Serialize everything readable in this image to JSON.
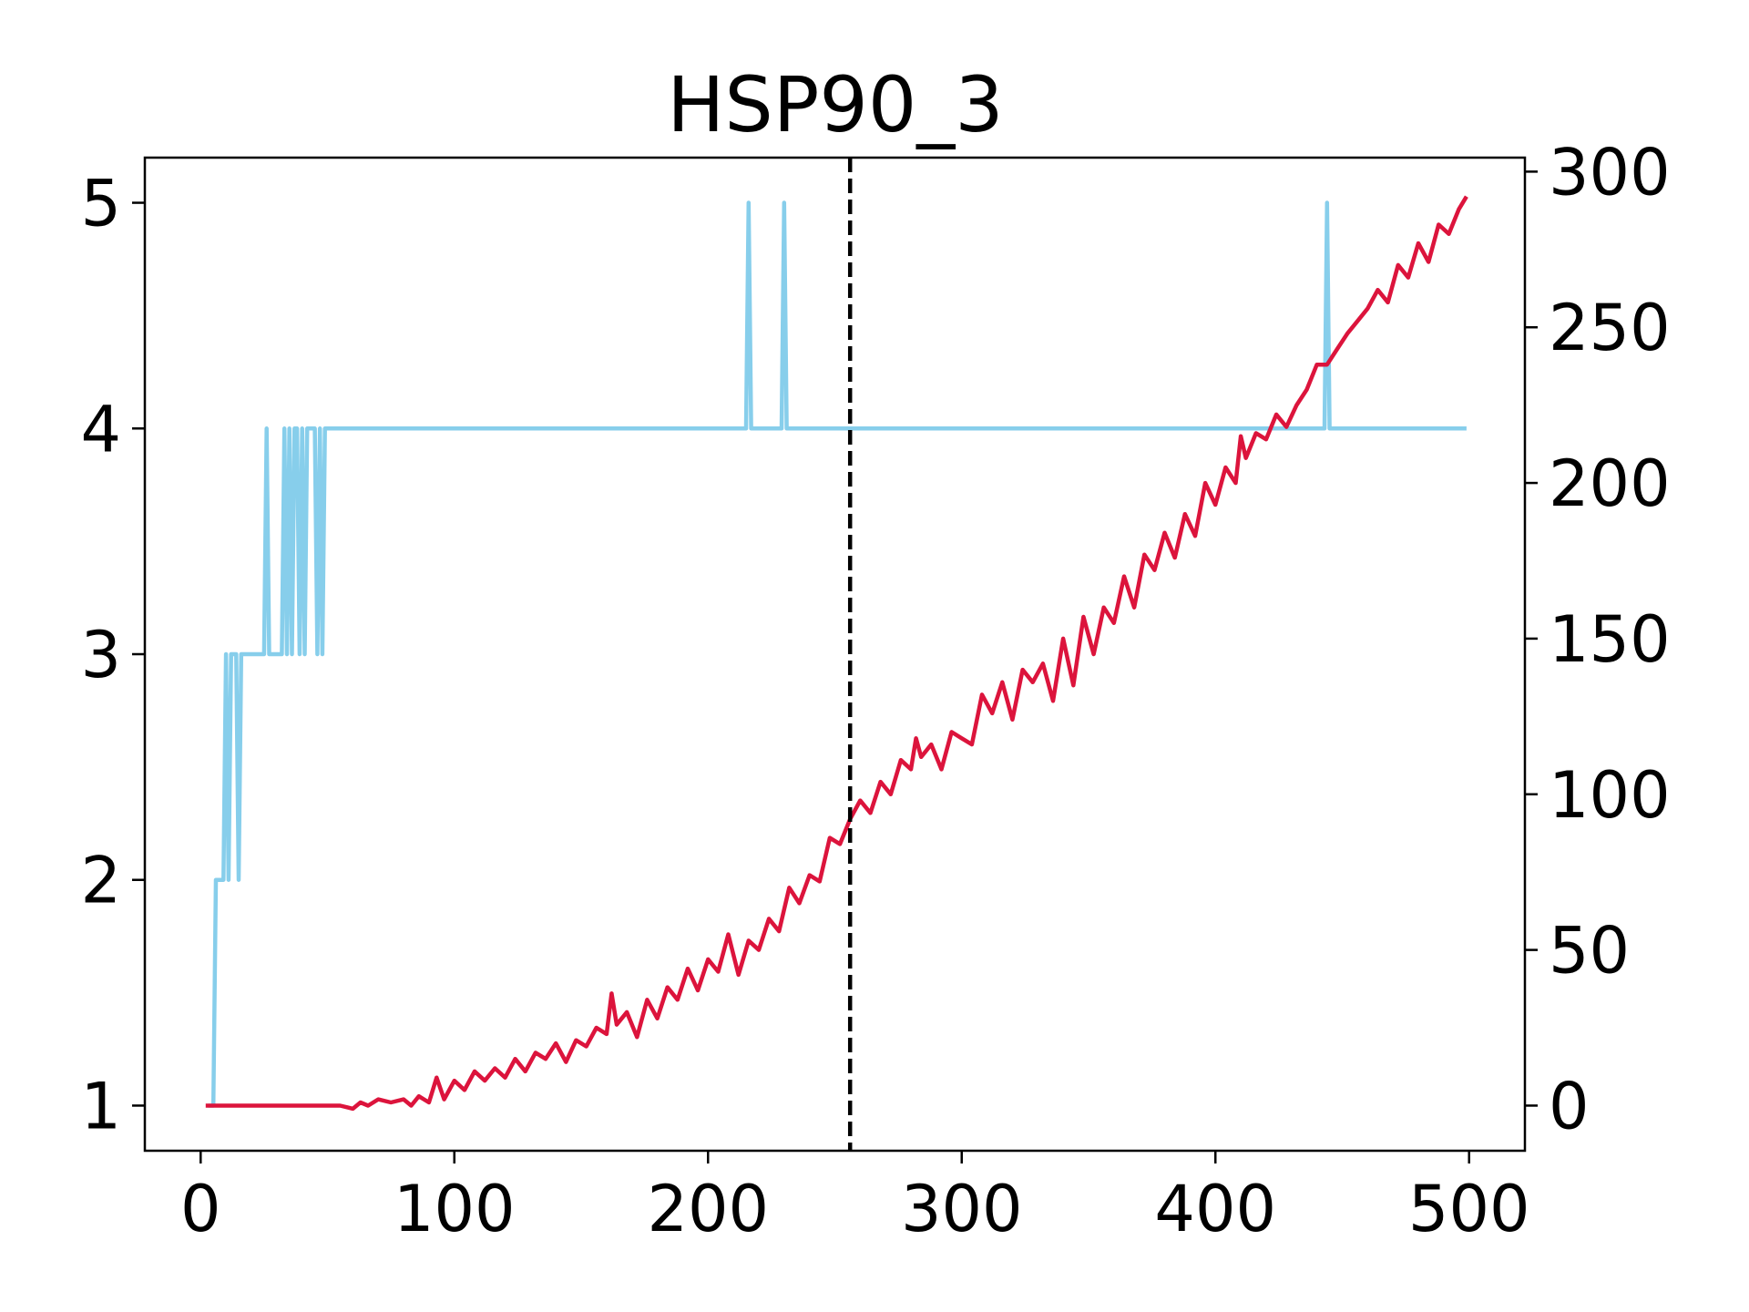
{
  "chart_data": {
    "type": "line",
    "title": "HSP90_3",
    "xlabel": "",
    "ylabel": "",
    "y2label": "",
    "xlim": [
      -22,
      522
    ],
    "ylim": [
      0.8,
      5.2
    ],
    "y2lim": [
      -14.5,
      304.5
    ],
    "xticks": [
      0,
      100,
      200,
      300,
      400,
      500
    ],
    "yticks": [
      1,
      2,
      3,
      4,
      5
    ],
    "y2ticks": [
      0,
      50,
      100,
      150,
      200,
      250,
      300
    ],
    "grid": false,
    "legend": "none",
    "vline": {
      "x": 256,
      "style": "dashed",
      "color": "#000000"
    },
    "series": [
      {
        "axis": "left",
        "color": "#87CEEB",
        "x": [
          3,
          5,
          6,
          9,
          10,
          11,
          12,
          13,
          14,
          15,
          16,
          17,
          18,
          25,
          26,
          27,
          32,
          33,
          34,
          35,
          36,
          37,
          38,
          39,
          40,
          41,
          42,
          43,
          44,
          45,
          46,
          47,
          48,
          49,
          50,
          100,
          200,
          215,
          216,
          217,
          229,
          230,
          231,
          300,
          400,
          443,
          444,
          445,
          499
        ],
        "y": [
          1,
          1,
          2,
          2,
          3,
          2,
          3,
          3,
          3,
          2,
          3,
          3,
          3,
          3,
          4,
          3,
          3,
          4,
          3,
          4,
          3,
          4,
          4,
          3,
          4,
          3,
          4,
          4,
          4,
          4,
          3,
          4,
          3,
          4,
          4,
          4,
          4,
          4,
          5,
          4,
          4,
          5,
          4,
          4,
          4,
          4,
          5,
          4,
          4
        ]
      },
      {
        "axis": "right",
        "color": "#DC143C",
        "x": [
          2,
          10,
          20,
          30,
          40,
          50,
          55,
          60,
          63,
          66,
          70,
          75,
          80,
          83,
          86,
          90,
          93,
          96,
          100,
          104,
          108,
          112,
          116,
          120,
          124,
          128,
          132,
          136,
          140,
          144,
          148,
          152,
          156,
          160,
          162,
          164,
          168,
          172,
          176,
          180,
          184,
          188,
          192,
          196,
          200,
          204,
          208,
          212,
          216,
          220,
          224,
          228,
          232,
          236,
          240,
          244,
          248,
          252,
          256,
          260,
          264,
          268,
          272,
          276,
          280,
          282,
          284,
          288,
          292,
          296,
          300,
          304,
          308,
          312,
          316,
          320,
          324,
          328,
          332,
          336,
          340,
          344,
          348,
          352,
          356,
          360,
          364,
          368,
          372,
          376,
          380,
          384,
          388,
          392,
          396,
          400,
          404,
          408,
          410,
          412,
          416,
          420,
          424,
          428,
          432,
          436,
          440,
          444,
          448,
          452,
          456,
          460,
          464,
          468,
          472,
          476,
          480,
          484,
          488,
          492,
          496,
          499
        ],
        "y": [
          0,
          0,
          0,
          0,
          0,
          0,
          0,
          -1,
          1,
          0,
          2,
          1,
          2,
          0,
          3,
          1,
          9,
          2,
          8,
          5,
          11,
          8,
          12,
          9,
          15,
          11,
          17,
          15,
          20,
          14,
          21,
          19,
          25,
          23,
          36,
          26,
          30,
          22,
          34,
          28,
          38,
          34,
          44,
          37,
          47,
          43,
          55,
          42,
          53,
          50,
          60,
          56,
          70,
          65,
          74,
          72,
          86,
          84,
          92,
          98,
          94,
          104,
          100,
          111,
          108,
          118,
          112,
          116,
          108,
          120,
          118,
          116,
          132,
          126,
          136,
          124,
          140,
          136,
          142,
          130,
          150,
          135,
          157,
          145,
          160,
          155,
          170,
          160,
          177,
          172,
          184,
          176,
          190,
          183,
          200,
          193,
          205,
          200,
          215,
          208,
          216,
          214,
          222,
          218,
          225,
          230,
          238,
          238,
          243,
          248,
          252,
          256,
          262,
          258,
          270,
          266,
          277,
          271,
          283,
          280,
          288,
          292
        ]
      }
    ]
  }
}
